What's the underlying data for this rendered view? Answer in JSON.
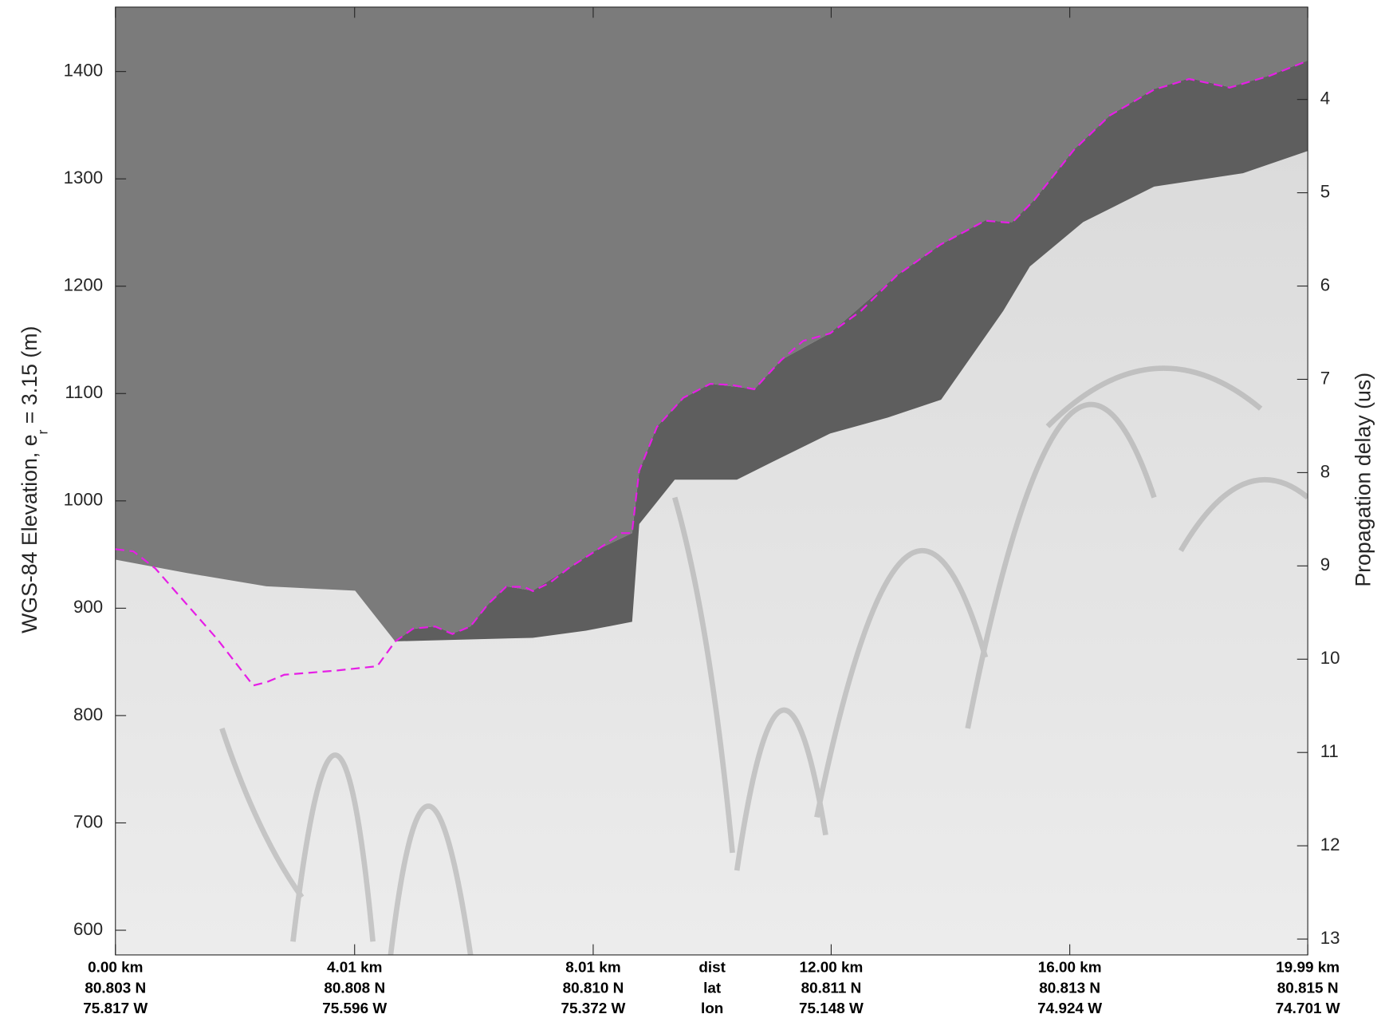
{
  "chart_data": {
    "type": "line",
    "y_label": [
      "WGS-84 Elevation, e",
      "r",
      " = 3.15 (m)"
    ],
    "y2_label": "Propagation delay (us)",
    "x": [
      0,
      0.3,
      0.67,
      1.19,
      1.71,
      2.31,
      2.53,
      2.83,
      3.72,
      4.39,
      4.69,
      4.99,
      5.36,
      5.65,
      5.95,
      6.25,
      6.55,
      6.85,
      7.0,
      7.29,
      7.59,
      8.04,
      8.48,
      8.66,
      8.78,
      9.08,
      9.52,
      9.97,
      10.34,
      10.71,
      11.16,
      11.53,
      11.98,
      12.5,
      13.1,
      13.84,
      14.58,
      15.03,
      15.4,
      16.07,
      16.67,
      17.41,
      18.0,
      18.68,
      19.35,
      19.99
    ],
    "series": [
      {
        "color": "#e61ee6",
        "values": [
          955,
          953,
          937,
          904,
          871,
          828,
          831,
          838,
          842,
          846,
          869,
          881,
          883,
          876,
          883,
          904,
          920,
          920,
          916,
          924,
          937,
          953,
          970,
          970,
          1028,
          1069,
          1096,
          1109,
          1108,
          1104,
          1131,
          1149,
          1156,
          1177,
          1210,
          1239,
          1261,
          1259,
          1280,
          1327,
          1359,
          1383,
          1393,
          1385,
          1396,
          1410
        ]
      }
    ],
    "xlim": [
      0,
      19.99
    ],
    "xticks": [
      {
        "value": 0,
        "label": "0.00 km"
      },
      {
        "value": 4.01,
        "label": "4.01 km"
      },
      {
        "value": 8.01,
        "label": "8.01 km"
      },
      {
        "value": 12.0,
        "label": "12.00 km"
      },
      {
        "value": 16.0,
        "label": "16.00 km"
      },
      {
        "value": 19.99,
        "label": "19.99 km"
      }
    ],
    "lat_labels": [
      "80.803 N",
      "80.808 N",
      "80.810 N",
      "80.811 N",
      "80.813 N",
      "80.815 N"
    ],
    "lon_labels": [
      "75.817 W",
      "75.596 W",
      "75.372 W",
      "75.148 W",
      "74.924 W",
      "74.701 W"
    ],
    "row_labels": [
      "dist",
      "lat",
      "lon"
    ],
    "ylim": [
      577,
      1460
    ],
    "yticks": [
      600,
      700,
      800,
      900,
      1000,
      1100,
      1200,
      1300,
      1400
    ],
    "y2lim": [
      13.17,
      3.01
    ],
    "y2ticks": [
      4,
      5,
      6,
      7,
      8,
      9,
      10,
      11,
      12,
      13
    ]
  }
}
